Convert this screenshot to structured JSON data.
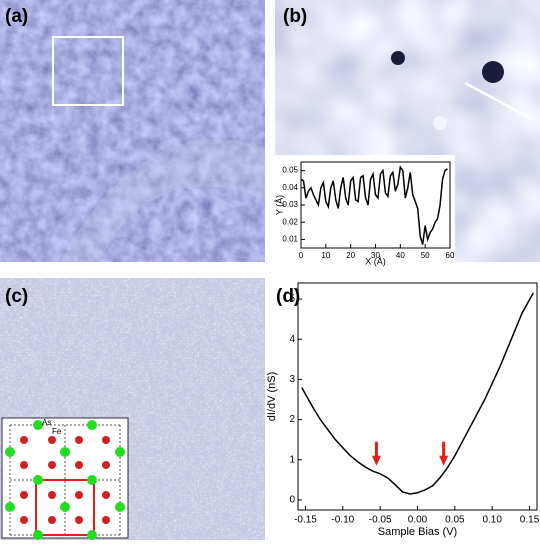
{
  "panels": {
    "a": "(a)",
    "b": "(b)",
    "c": "(c)",
    "d": "(d)"
  },
  "lattice": {
    "as_label": "As",
    "fe_label": "Fe"
  },
  "chart_data": [
    {
      "type": "line",
      "x_label": "X (Å)",
      "y_label": "Y (Å)",
      "x": [
        0,
        1,
        2,
        3,
        4,
        5,
        6,
        7,
        8,
        9,
        10,
        11,
        12,
        13,
        14,
        15,
        16,
        17,
        18,
        19,
        20,
        21,
        22,
        23,
        24,
        25,
        26,
        27,
        28,
        29,
        30,
        31,
        32,
        33,
        34,
        35,
        36,
        37,
        38,
        39,
        40,
        41,
        42,
        43,
        44,
        45,
        46,
        47,
        48,
        49,
        50,
        51,
        52,
        53,
        54,
        55,
        56,
        57,
        58,
        59
      ],
      "series": [
        {
          "color": "#000000",
          "values": [
            0.045,
            0.044,
            0.034,
            0.038,
            0.04,
            0.036,
            0.033,
            0.03,
            0.04,
            0.043,
            0.032,
            0.029,
            0.04,
            0.044,
            0.033,
            0.028,
            0.04,
            0.046,
            0.034,
            0.03,
            0.044,
            0.046,
            0.033,
            0.032,
            0.046,
            0.047,
            0.034,
            0.03,
            0.045,
            0.048,
            0.036,
            0.034,
            0.048,
            0.05,
            0.037,
            0.035,
            0.047,
            0.049,
            0.038,
            0.042,
            0.052,
            0.05,
            0.034,
            0.04,
            0.049,
            0.036,
            0.032,
            0.028,
            0.012,
            0.007,
            0.018,
            0.01,
            0.014,
            0.016,
            0.02,
            0.022,
            0.03,
            0.045,
            0.05,
            0.051
          ]
        }
      ],
      "xlim": [
        0,
        60
      ],
      "xticks": [
        0,
        10,
        20,
        30,
        40,
        50,
        60
      ],
      "ylim": [
        0.005,
        0.055
      ],
      "yticks": [
        0.01,
        0.02,
        0.03,
        0.04,
        0.05
      ]
    },
    {
      "type": "line",
      "x_label": "Sample Bias (V)",
      "y_label": "dI/dV (nS)",
      "x": [
        -0.155,
        -0.14,
        -0.13,
        -0.12,
        -0.11,
        -0.1,
        -0.09,
        -0.08,
        -0.07,
        -0.06,
        -0.05,
        -0.04,
        -0.03,
        -0.02,
        -0.01,
        0,
        0.01,
        0.02,
        0.03,
        0.04,
        0.05,
        0.06,
        0.07,
        0.08,
        0.09,
        0.1,
        0.11,
        0.12,
        0.13,
        0.14,
        0.155
      ],
      "series": [
        {
          "color": "#000000",
          "values": [
            2.8,
            2.3,
            2.0,
            1.75,
            1.5,
            1.3,
            1.1,
            0.95,
            0.82,
            0.72,
            0.65,
            0.55,
            0.38,
            0.2,
            0.15,
            0.18,
            0.25,
            0.35,
            0.55,
            0.8,
            1.1,
            1.45,
            1.8,
            2.15,
            2.5,
            2.9,
            3.3,
            3.75,
            4.2,
            4.65,
            5.15
          ]
        }
      ],
      "arrows": [
        {
          "x": -0.055,
          "color": "#e0201a"
        },
        {
          "x": 0.035,
          "color": "#e0201a"
        }
      ],
      "xlim": [
        -0.16,
        0.16
      ],
      "xticks": [
        -0.15,
        {
          "value": -0.1,
          "label": "-0.10"
        },
        -0.05,
        {
          "value": 0,
          "label": "0.00"
        },
        0.05,
        {
          "value": 0.1,
          "label": "0.10"
        },
        0.15
      ],
      "ylim": [
        -0.25,
        5.4
      ],
      "yticks": [
        0,
        1,
        2,
        3,
        4,
        5
      ]
    }
  ]
}
